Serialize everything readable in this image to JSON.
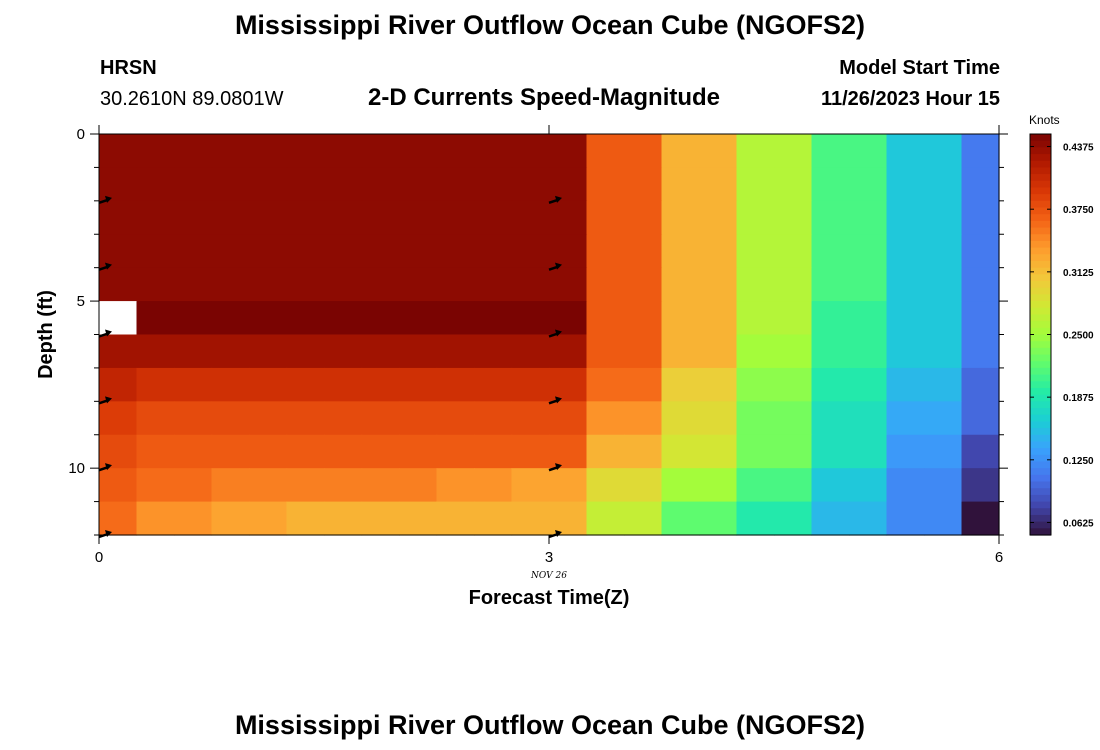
{
  "header": {
    "title": "Mississippi River Outflow Ocean Cube (NGOFS2)",
    "station": "HRSN",
    "location": "30.2610N  89.0801W",
    "subtitle": "2-D Currents Speed-Magnitude",
    "model_label": "Model Start Time",
    "model_time": "11/26/2023 Hour 15"
  },
  "footer": {
    "title": "Mississippi River Outflow Ocean Cube (NGOFS2)"
  },
  "chart_data": {
    "type": "heatmap",
    "title": "2-D Currents Speed-Magnitude",
    "xlabel": "Forecast Time(Z)",
    "ylabel": "Depth (ft)",
    "x_ticks": [
      0,
      3,
      6
    ],
    "y_ticks": [
      0,
      5,
      10
    ],
    "xlim": [
      0,
      6
    ],
    "ylim": [
      0,
      12
    ],
    "date_label": "NOV 26",
    "colorbar": {
      "unit": "Knots",
      "min": 0.05,
      "max": 0.45,
      "ticks": [
        "0.0625",
        "0.1250",
        "0.1875",
        "0.2500",
        "0.3125",
        "0.3750",
        "0.4375"
      ],
      "colors": [
        "#30123b",
        "#4145ab",
        "#4675ed",
        "#39a2fc",
        "#1bcfd4",
        "#24eca6",
        "#61fc6c",
        "#a4fc3b",
        "#d1e834",
        "#f3c63a",
        "#fe9b2d",
        "#f36315",
        "#d93806",
        "#b11901",
        "#7a0402"
      ]
    },
    "x": [
      0.125,
      0.375,
      0.625,
      0.875,
      1.125,
      1.375,
      1.625,
      1.875,
      2.125,
      2.375,
      2.625,
      2.875,
      3.125,
      3.375,
      3.625,
      3.875,
      4.125,
      4.375,
      4.625,
      4.875,
      5.125,
      5.375,
      5.625,
      5.875
    ],
    "depth_edges": [
      0,
      1,
      2,
      3,
      4,
      5,
      6,
      7,
      8,
      9,
      10,
      11,
      12
    ],
    "speed_knots": [
      [
        0.44,
        0.44,
        0.44,
        0.44,
        0.44,
        0.44,
        0.44,
        0.44,
        0.44,
        0.44,
        0.44,
        0.44,
        0.44,
        0.37,
        0.37,
        0.32,
        0.32,
        0.26,
        0.26,
        0.21,
        0.21,
        0.16,
        0.16,
        0.11
      ],
      [
        0.44,
        0.44,
        0.44,
        0.44,
        0.44,
        0.44,
        0.44,
        0.44,
        0.44,
        0.44,
        0.44,
        0.44,
        0.44,
        0.37,
        0.37,
        0.32,
        0.32,
        0.26,
        0.26,
        0.21,
        0.21,
        0.16,
        0.16,
        0.11
      ],
      [
        0.44,
        0.44,
        0.44,
        0.44,
        0.44,
        0.44,
        0.44,
        0.44,
        0.44,
        0.44,
        0.44,
        0.44,
        0.44,
        0.37,
        0.37,
        0.32,
        0.32,
        0.26,
        0.26,
        0.21,
        0.21,
        0.16,
        0.16,
        0.11
      ],
      [
        0.44,
        0.44,
        0.44,
        0.44,
        0.44,
        0.44,
        0.44,
        0.44,
        0.44,
        0.44,
        0.44,
        0.44,
        0.44,
        0.37,
        0.37,
        0.32,
        0.32,
        0.26,
        0.26,
        0.21,
        0.21,
        0.16,
        0.16,
        0.11
      ],
      [
        0.44,
        0.44,
        0.44,
        0.44,
        0.44,
        0.44,
        0.44,
        0.44,
        0.44,
        0.44,
        0.44,
        0.44,
        0.44,
        0.37,
        0.37,
        0.32,
        0.32,
        0.26,
        0.26,
        0.21,
        0.21,
        0.16,
        0.16,
        0.11
      ],
      [
        null,
        0.45,
        0.45,
        0.45,
        0.45,
        0.45,
        0.45,
        0.45,
        0.45,
        0.45,
        0.45,
        0.45,
        0.45,
        0.37,
        0.37,
        0.32,
        0.32,
        0.26,
        0.26,
        0.2,
        0.2,
        0.16,
        0.16,
        0.11
      ],
      [
        0.43,
        0.43,
        0.43,
        0.43,
        0.43,
        0.43,
        0.43,
        0.43,
        0.43,
        0.43,
        0.43,
        0.43,
        0.43,
        0.37,
        0.37,
        0.32,
        0.32,
        0.25,
        0.25,
        0.2,
        0.2,
        0.16,
        0.16,
        0.11
      ],
      [
        0.41,
        0.4,
        0.4,
        0.4,
        0.4,
        0.4,
        0.4,
        0.4,
        0.4,
        0.4,
        0.4,
        0.4,
        0.4,
        0.36,
        0.36,
        0.3,
        0.3,
        0.24,
        0.24,
        0.19,
        0.19,
        0.15,
        0.15,
        0.1
      ],
      [
        0.39,
        0.38,
        0.38,
        0.38,
        0.38,
        0.38,
        0.38,
        0.38,
        0.38,
        0.38,
        0.38,
        0.38,
        0.38,
        0.34,
        0.34,
        0.29,
        0.29,
        0.23,
        0.23,
        0.18,
        0.18,
        0.14,
        0.14,
        0.1
      ],
      [
        0.38,
        0.37,
        0.37,
        0.37,
        0.37,
        0.37,
        0.37,
        0.37,
        0.37,
        0.37,
        0.37,
        0.37,
        0.37,
        0.32,
        0.32,
        0.28,
        0.28,
        0.23,
        0.23,
        0.18,
        0.18,
        0.13,
        0.13,
        0.08
      ],
      [
        0.37,
        0.36,
        0.36,
        0.35,
        0.35,
        0.35,
        0.35,
        0.35,
        0.35,
        0.34,
        0.34,
        0.33,
        0.33,
        0.29,
        0.29,
        0.25,
        0.25,
        0.21,
        0.21,
        0.16,
        0.16,
        0.12,
        0.12,
        0.07
      ],
      [
        0.36,
        0.34,
        0.34,
        0.33,
        0.33,
        0.32,
        0.32,
        0.32,
        0.32,
        0.32,
        0.32,
        0.32,
        0.32,
        0.27,
        0.27,
        0.22,
        0.22,
        0.19,
        0.19,
        0.15,
        0.15,
        0.12,
        0.12,
        0.05
      ]
    ],
    "vector_times": [
      0,
      3
    ],
    "vector_depths": [
      2,
      4,
      6,
      8,
      10,
      12
    ]
  }
}
